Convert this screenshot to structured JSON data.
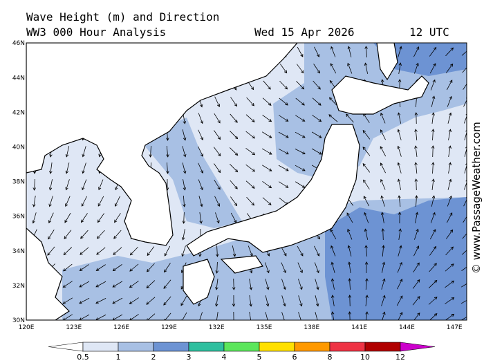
{
  "header": {
    "title": "Wave Height (m) and Direction",
    "subtitle": "WW3 000 Hour Analysis",
    "date": "Wed 15 Apr 2026",
    "time": "12 UTC"
  },
  "map": {
    "lon_labels": [
      "120E",
      "123E",
      "126E",
      "129E",
      "132E",
      "135E",
      "138E",
      "141E",
      "144E",
      "147E"
    ],
    "lat_labels": [
      "30N",
      "32N",
      "34N",
      "36N",
      "38N",
      "40N",
      "42N",
      "44N",
      "46N"
    ]
  },
  "colorbar": {
    "ticks": [
      0.5,
      1,
      2,
      3,
      4,
      5,
      6,
      8,
      10,
      12
    ],
    "colors": [
      "#ffffff",
      "#dfe7f5",
      "#a8c0e4",
      "#6d93d3",
      "#2fbf9f",
      "#5ce65c",
      "#ffe000",
      "#ff9900",
      "#ee3344",
      "#b00000",
      "#cc00cc"
    ]
  },
  "credit": "© www.PassageWeather.com"
}
